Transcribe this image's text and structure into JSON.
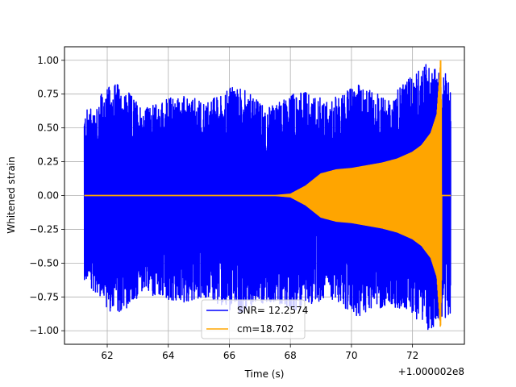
{
  "chart_data": {
    "type": "line",
    "title": "",
    "xlabel": "Time (s)",
    "ylabel": "Whitened strain",
    "x_offset_label": "+1.000002e8",
    "xlim": [
      60.6,
      73.7
    ],
    "ylim": [
      -1.1,
      1.1
    ],
    "x_ticks": [
      62,
      64,
      66,
      68,
      70,
      72
    ],
    "y_ticks": [
      -1.0,
      -0.75,
      -0.5,
      -0.25,
      0.0,
      0.25,
      0.5,
      0.75,
      1.0
    ],
    "x_tick_labels": [
      "62",
      "64",
      "66",
      "68",
      "70",
      "72"
    ],
    "y_tick_labels": [
      "−1.00",
      "−0.75",
      "−0.50",
      "−0.25",
      "0.00",
      "0.25",
      "0.50",
      "0.75",
      "1.00"
    ],
    "grid": true,
    "legend_position": "bottom-center",
    "series": [
      {
        "name": "SNR= 12.2574",
        "color": "#0000ff",
        "x_range": [
          61.25,
          73.25
        ],
        "envelope_upper": [
          0.62,
          0.85,
          0.65,
          0.75,
          0.7,
          0.82,
          0.65,
          0.78,
          0.7,
          0.82,
          0.72,
          1.0,
          0.88
        ],
        "envelope_lower": [
          -0.62,
          -0.9,
          -0.72,
          -0.8,
          -0.75,
          -0.88,
          -0.78,
          -0.85,
          -0.75,
          -0.9,
          -0.8,
          -1.0,
          -0.88
        ],
        "x_envelope": [
          61.25,
          62.25,
          63.25,
          64.25,
          65.25,
          66.25,
          67.25,
          68.25,
          69.25,
          70.25,
          71.25,
          72.5,
          73.2
        ]
      },
      {
        "name": "cm=18.702",
        "color": "#ffa500",
        "x_range": [
          61.25,
          73.25
        ],
        "envelope_x": [
          61.25,
          67.5,
          68.0,
          68.5,
          69.0,
          69.5,
          70.0,
          70.5,
          71.0,
          71.5,
          72.0,
          72.3,
          72.6,
          72.8,
          72.92,
          73.0,
          73.25
        ],
        "envelope_amp": [
          0.0,
          0.0,
          0.01,
          0.07,
          0.16,
          0.19,
          0.2,
          0.22,
          0.24,
          0.27,
          0.32,
          0.37,
          0.46,
          0.6,
          1.0,
          0.0,
          0.0
        ]
      }
    ]
  }
}
